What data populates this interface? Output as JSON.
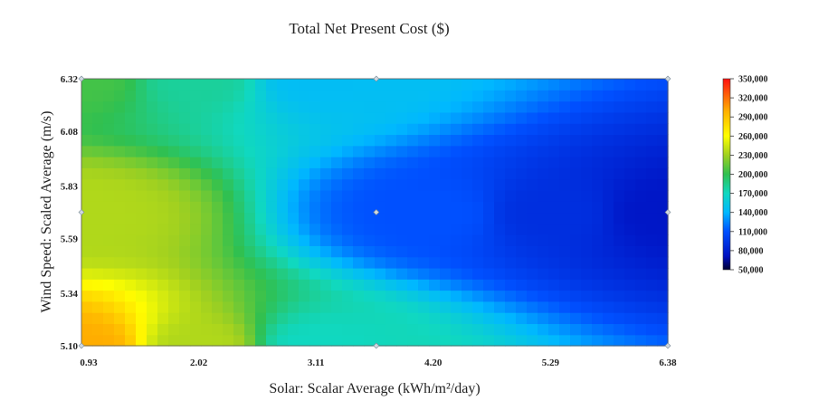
{
  "chart_data": {
    "type": "heatmap",
    "title": "Total Net Present Cost ($)",
    "xlabel": "Solar: Scalar Average (kWh/m²/day)",
    "ylabel": "Wind Speed: Scaled Average (m/s)",
    "x_ticks": [
      "0.93",
      "2.02",
      "3.11",
      "4.20",
      "5.29",
      "6.38"
    ],
    "y_ticks": [
      "5.10",
      "5.34",
      "5.59",
      "5.83",
      "6.08",
      "6.32"
    ],
    "xlim": [
      0.93,
      6.38
    ],
    "ylim": [
      5.1,
      6.32
    ],
    "sample_points": {
      "x": [
        0.93,
        3.67,
        6.38
      ],
      "y": [
        5.1,
        5.71,
        6.32
      ]
    },
    "colorbar": {
      "min": 50000,
      "max": 350000,
      "ticks": [
        "350,000",
        "320,000",
        "290,000",
        "260,000",
        "230,000",
        "200,000",
        "170,000",
        "140,000",
        "110,000",
        "80,000",
        "50,000"
      ]
    },
    "surface_estimates": [
      {
        "x": 0.93,
        "y": 5.1,
        "value": 300000
      },
      {
        "x": 0.93,
        "y": 5.71,
        "value": 235000
      },
      {
        "x": 0.93,
        "y": 6.32,
        "value": 205000
      },
      {
        "x": 2.02,
        "y": 5.1,
        "value": 235000
      },
      {
        "x": 2.02,
        "y": 6.32,
        "value": 180000
      },
      {
        "x": 3.11,
        "y": 5.1,
        "value": 170000
      },
      {
        "x": 3.11,
        "y": 6.32,
        "value": 145000
      },
      {
        "x": 4.2,
        "y": 5.71,
        "value": 110000
      },
      {
        "x": 5.29,
        "y": 5.71,
        "value": 90000
      },
      {
        "x": 6.38,
        "y": 5.71,
        "value": 75000
      }
    ],
    "grid": false,
    "legend": "colorbar-right"
  }
}
